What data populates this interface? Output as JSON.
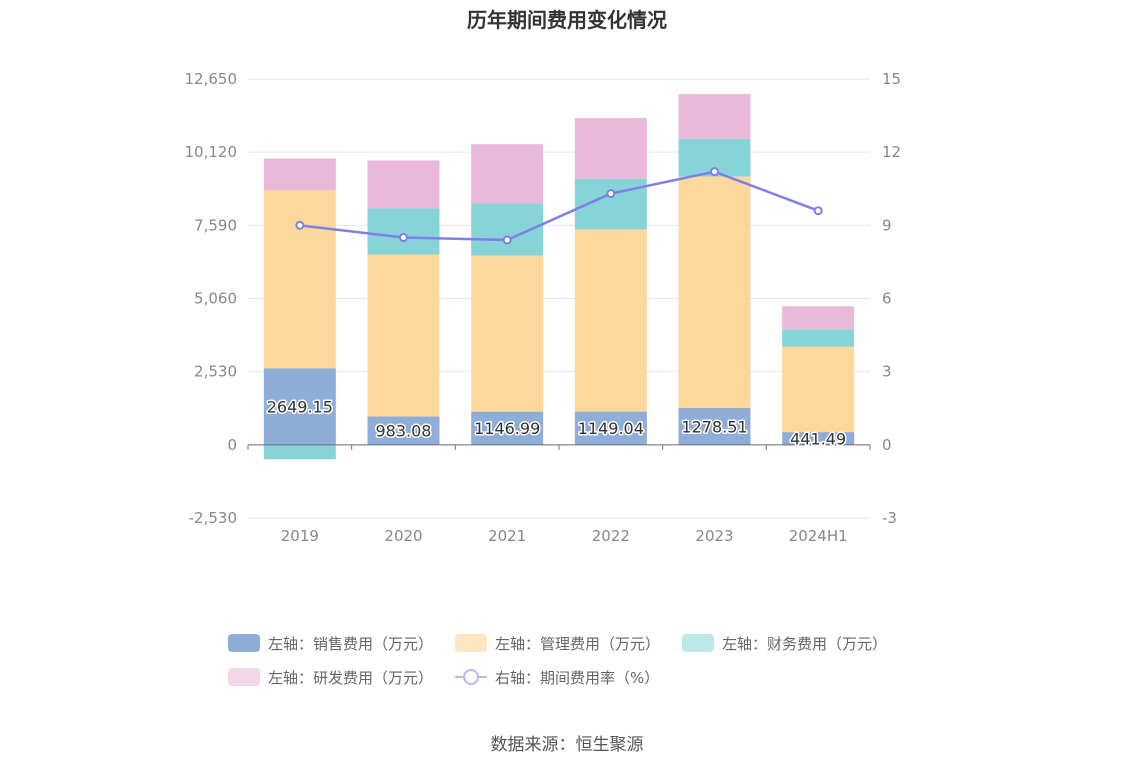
{
  "chart_data": {
    "title": "历年期间费用变化情况",
    "type": "bar",
    "stacked": true,
    "categories": [
      "2019",
      "2020",
      "2021",
      "2022",
      "2023",
      "2024H1"
    ],
    "y_left": {
      "ticks": [
        "12,650",
        "10,120",
        "7,590",
        "5,060",
        "2,530",
        "0",
        "-2,530"
      ],
      "min": -2530,
      "max": 12650
    },
    "y_right": {
      "ticks": [
        "15",
        "12",
        "9",
        "6",
        "3",
        "0",
        "-3"
      ],
      "min": -3,
      "max": 15
    },
    "grid": true,
    "legend_position": "bottom",
    "series": [
      {
        "name": "左轴：销售费用（万元）",
        "color": "#8fadd9",
        "axis": "left",
        "values": [
          2649.15,
          983.08,
          1146.99,
          1149.04,
          1278.51,
          441.49
        ],
        "labels": [
          "2649.15",
          "983.08",
          "1146.99",
          "1149.04",
          "1278.51",
          "441.49"
        ]
      },
      {
        "name": "左轴：管理费用（万元）",
        "color": "#fdd89d",
        "legend_color": "#fde6c1",
        "axis": "left",
        "values": [
          6150,
          5600,
          5400,
          6300,
          8000,
          2950
        ]
      },
      {
        "name": "左轴：财务费用（万元）",
        "color": "#86d4d8",
        "legend_color": "#bce8ea",
        "axis": "left",
        "values": [
          -500,
          1600,
          1800,
          1750,
          1300,
          600
        ]
      },
      {
        "name": "左轴：研发费用（万元）",
        "color": "#e8b9d9",
        "legend_color": "#f3d8ea",
        "axis": "left",
        "values": [
          1100,
          1650,
          2050,
          2100,
          1550,
          800
        ]
      },
      {
        "name": "右轴：期间费用率（%）",
        "type": "line",
        "color": "#7f7fe8",
        "axis": "right",
        "values": [
          9.0,
          8.5,
          8.4,
          10.3,
          11.2,
          9.6
        ]
      }
    ]
  },
  "source": "数据来源：恒生聚源"
}
